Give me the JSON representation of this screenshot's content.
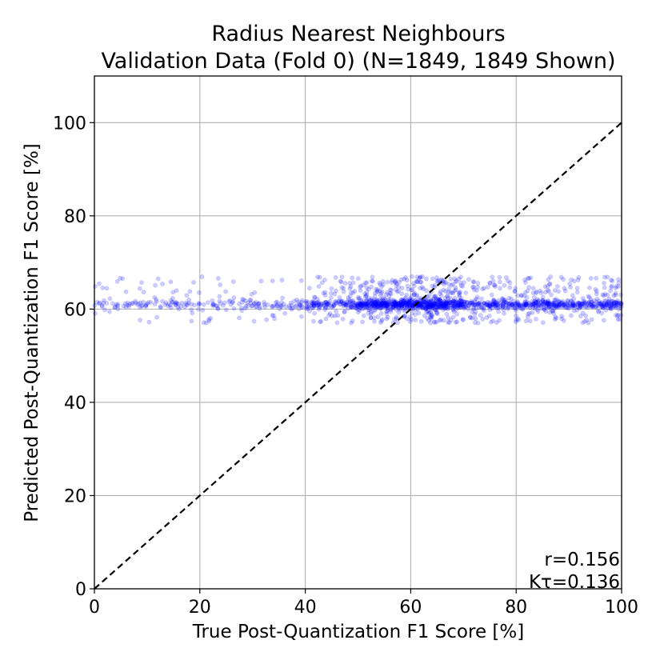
{
  "chart_data": {
    "type": "scatter",
    "title_line1": "Radius Nearest Neighbours",
    "title_line2": "Validation Data (Fold 0) (N=1849, 1849 Shown)",
    "xlabel": "True Post-Quantization F1 Score [%]",
    "ylabel": "Predicted Post-Quantization F1 Score [%]",
    "xlim": [
      0,
      100
    ],
    "ylim": [
      0,
      110
    ],
    "xticks": [
      "0",
      "20",
      "40",
      "60",
      "80",
      "100"
    ],
    "yticks": [
      "0",
      "20",
      "40",
      "60",
      "80",
      "100"
    ],
    "grid": true,
    "reference_line": {
      "x": [
        0,
        100
      ],
      "y": [
        0,
        100
      ],
      "style": "dashed",
      "color": "#000000"
    },
    "point_color": "#0000ff",
    "n_points": 1849,
    "point_distribution": {
      "x_range": [
        0,
        100
      ],
      "y_center": 61,
      "y_range": [
        57,
        67
      ],
      "density_note": "points concentrated between x=40 and x=100, sparser below x=40"
    },
    "annotations": {
      "pearson": "r=0.156",
      "kendall": "Kτ=0.136"
    }
  }
}
